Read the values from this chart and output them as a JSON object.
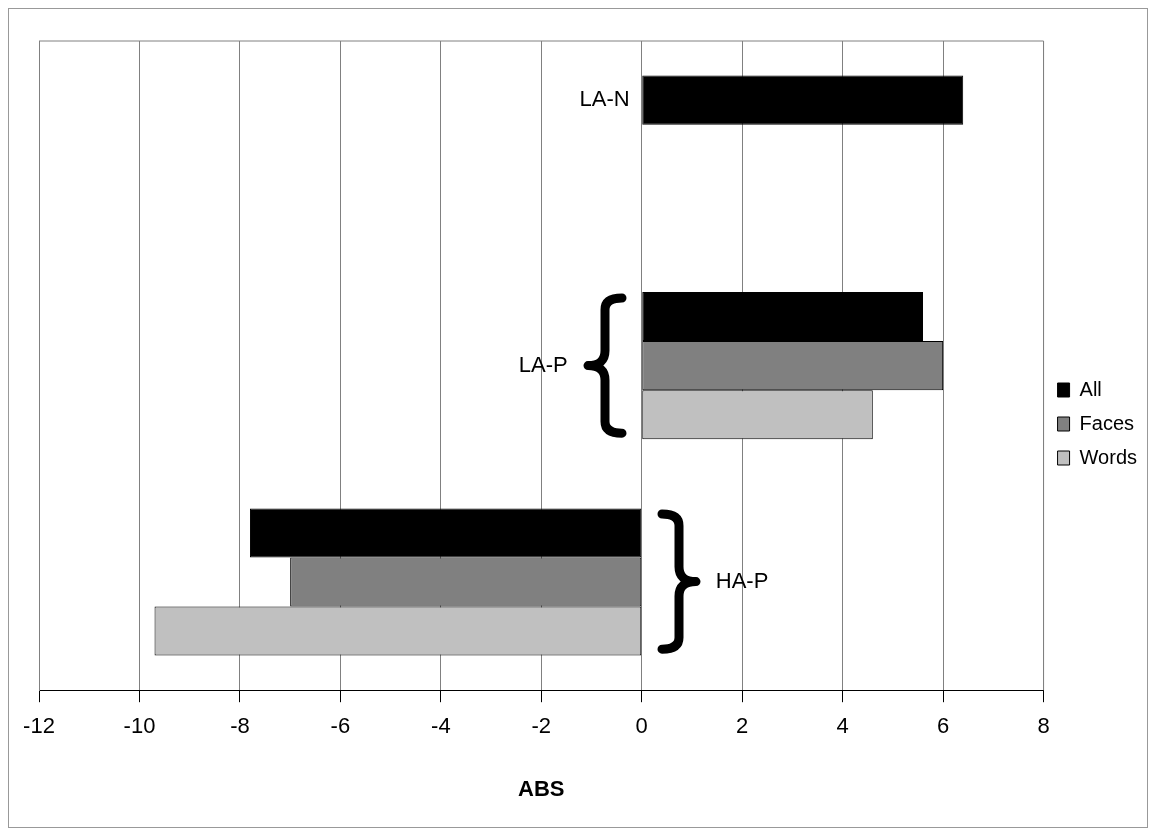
{
  "chart_data": {
    "type": "bar",
    "orientation": "horizontal",
    "xlabel": "ABS",
    "categories": [
      "LA-N",
      "LA-P",
      "HA-P"
    ],
    "series": [
      {
        "name": "All",
        "color": "#000000",
        "values": [
          6.4,
          5.6,
          -7.8
        ]
      },
      {
        "name": "Faces",
        "color": "#808080",
        "values": [
          null,
          6.0,
          -7.0
        ]
      },
      {
        "name": "Words",
        "color": "#c0c0c0",
        "values": [
          null,
          4.6,
          -9.7
        ]
      }
    ],
    "xlim": [
      -12,
      8
    ],
    "xticks": [
      -12,
      -10,
      -8,
      -6,
      -4,
      -2,
      0,
      2,
      4,
      6,
      8
    ],
    "grid": "x",
    "legend": "right"
  }
}
